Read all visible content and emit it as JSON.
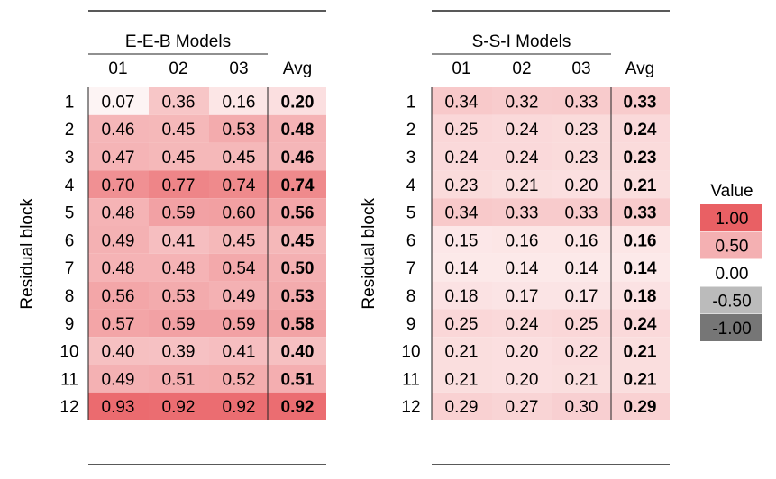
{
  "chart_data": [
    {
      "type": "heatmap",
      "title": "E-E-B Models",
      "ylabel": "Residual block",
      "columns": [
        "01",
        "02",
        "03",
        "Avg"
      ],
      "rows": [
        "1",
        "2",
        "3",
        "4",
        "5",
        "6",
        "7",
        "8",
        "9",
        "10",
        "11",
        "12"
      ],
      "values": [
        [
          0.07,
          0.36,
          0.16,
          0.2
        ],
        [
          0.46,
          0.45,
          0.53,
          0.48
        ],
        [
          0.47,
          0.45,
          0.45,
          0.46
        ],
        [
          0.7,
          0.77,
          0.74,
          0.74
        ],
        [
          0.48,
          0.59,
          0.6,
          0.56
        ],
        [
          0.49,
          0.41,
          0.45,
          0.45
        ],
        [
          0.48,
          0.48,
          0.54,
          0.5
        ],
        [
          0.56,
          0.53,
          0.49,
          0.53
        ],
        [
          0.57,
          0.59,
          0.59,
          0.58
        ],
        [
          0.4,
          0.39,
          0.41,
          0.4
        ],
        [
          0.49,
          0.51,
          0.52,
          0.51
        ],
        [
          0.93,
          0.92,
          0.92,
          0.92
        ]
      ]
    },
    {
      "type": "heatmap",
      "title": "S-S-I Models",
      "ylabel": "Residual block",
      "columns": [
        "01",
        "02",
        "03",
        "Avg"
      ],
      "rows": [
        "1",
        "2",
        "3",
        "4",
        "5",
        "6",
        "7",
        "8",
        "9",
        "10",
        "11",
        "12"
      ],
      "values": [
        [
          0.34,
          0.32,
          0.33,
          0.33
        ],
        [
          0.25,
          0.24,
          0.23,
          0.24
        ],
        [
          0.24,
          0.24,
          0.23,
          0.23
        ],
        [
          0.23,
          0.21,
          0.2,
          0.21
        ],
        [
          0.34,
          0.33,
          0.33,
          0.33
        ],
        [
          0.15,
          0.16,
          0.16,
          0.16
        ],
        [
          0.14,
          0.14,
          0.14,
          0.14
        ],
        [
          0.18,
          0.17,
          0.17,
          0.18
        ],
        [
          0.25,
          0.24,
          0.25,
          0.24
        ],
        [
          0.21,
          0.2,
          0.22,
          0.21
        ],
        [
          0.21,
          0.2,
          0.21,
          0.21
        ],
        [
          0.29,
          0.27,
          0.3,
          0.29
        ]
      ]
    }
  ],
  "legend": {
    "title": "Value",
    "entries": [
      {
        "label": "1.00",
        "value": 1.0
      },
      {
        "label": "0.50",
        "value": 0.5
      },
      {
        "label": "0.00",
        "value": 0.0
      },
      {
        "label": "-0.50",
        "value": -0.5
      },
      {
        "label": "-1.00",
        "value": -1.0
      }
    ]
  },
  "colors": {
    "positive": "#e8585c",
    "negative": "#6f6f6f",
    "neutral": "#ffffff",
    "rule": "#222222"
  }
}
